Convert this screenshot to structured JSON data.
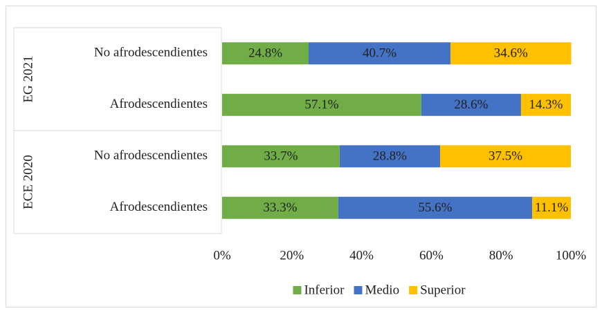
{
  "chart_data": {
    "type": "stacked_bar_horizontal",
    "groups": [
      {
        "name": "EG 2021",
        "categories": [
          "No afrodescendientes",
          "Afrodescendientes"
        ]
      },
      {
        "name": "ECE 2020",
        "categories": [
          "No afrodescendientes",
          "Afrodescendientes"
        ]
      }
    ],
    "series": [
      {
        "name": "Inferior",
        "color": "#70ad47",
        "values": [
          24.8,
          57.1,
          33.7,
          33.3
        ],
        "value_labels": [
          "24.8%",
          "57.1%",
          "33.7%",
          "33.3%"
        ]
      },
      {
        "name": "Medio",
        "color": "#4472c4",
        "values": [
          40.7,
          28.6,
          28.8,
          55.6
        ],
        "value_labels": [
          "40.7%",
          "28.6%",
          "28.8%",
          "55.6%"
        ]
      },
      {
        "name": "Superior",
        "color": "#ffc000",
        "values": [
          34.6,
          14.3,
          37.5,
          11.1
        ],
        "value_labels": [
          "34.6%",
          "14.3%",
          "37.5%",
          "11.1%"
        ]
      }
    ],
    "xlim": [
      0,
      100
    ],
    "xticks": [
      {
        "value": 0,
        "label": "0%"
      },
      {
        "value": 20,
        "label": "20%"
      },
      {
        "value": 40,
        "label": "40%"
      },
      {
        "value": 60,
        "label": "60%"
      },
      {
        "value": 80,
        "label": "80%"
      },
      {
        "value": 100,
        "label": "100%"
      }
    ],
    "legend": "bottom"
  }
}
